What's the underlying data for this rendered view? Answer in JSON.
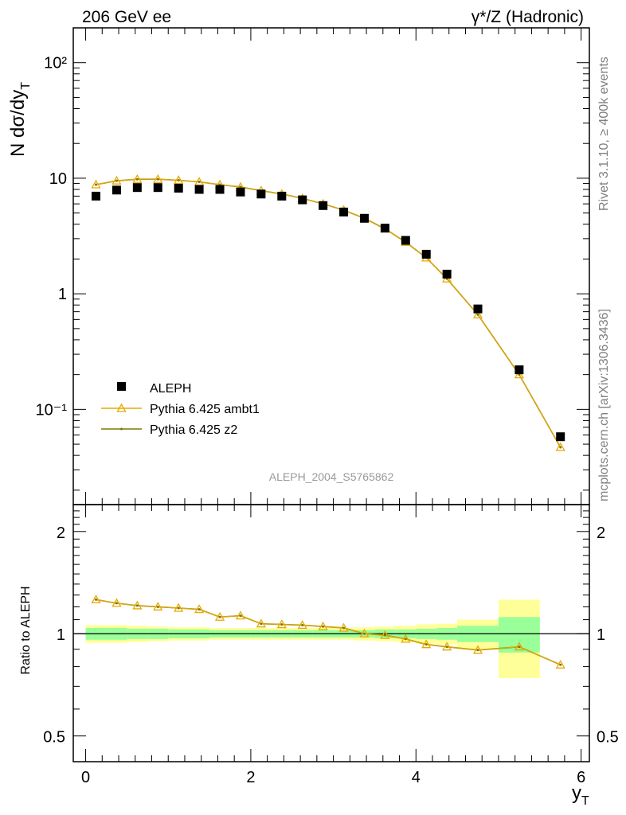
{
  "header": {
    "left_title": "206 GeV ee",
    "right_title": "γ*/Z (Hadronic)"
  },
  "side_text": {
    "rivet": "Rivet 3.1.10, ≥ 400k events",
    "mcplots": "mcplots.cern.ch [arXiv:1306.3436]"
  },
  "analysis_tag": "ALEPH_2004_S5765862",
  "colors": {
    "data": "#000000",
    "ambt1": "#e8a800",
    "z2": "#7a7a00",
    "band_inner": "#99ff99",
    "band_outer": "#ffff99"
  },
  "chart_data": [
    {
      "type": "scatter",
      "ylabel": "N dσ/dy_T",
      "yscale": "log",
      "ylim": [
        0.015,
        200
      ],
      "xlim": [
        -0.15,
        6.1
      ],
      "yticks": [
        {
          "value": 0.1,
          "label": "10⁻¹"
        },
        {
          "value": 1,
          "label": "1"
        },
        {
          "value": 10,
          "label": "10"
        },
        {
          "value": 100,
          "label": "10²"
        }
      ],
      "legend_position": "bottom-left",
      "series": [
        {
          "name": "ALEPH",
          "marker": "filled-square",
          "x": [
            0.125,
            0.375,
            0.625,
            0.875,
            1.125,
            1.375,
            1.625,
            1.875,
            2.125,
            2.375,
            2.625,
            2.875,
            3.125,
            3.375,
            3.625,
            3.875,
            4.125,
            4.375,
            4.75,
            5.25,
            5.75
          ],
          "values": [
            7.0,
            7.9,
            8.3,
            8.3,
            8.2,
            8.0,
            8.0,
            7.6,
            7.3,
            7.0,
            6.5,
            5.8,
            5.1,
            4.5,
            3.7,
            2.9,
            2.2,
            1.48,
            0.74,
            0.22,
            0.058
          ]
        },
        {
          "name": "Pythia 6.425 ambt1",
          "marker": "open-triangle",
          "x": [
            0.125,
            0.375,
            0.625,
            0.875,
            1.125,
            1.375,
            1.625,
            1.875,
            2.125,
            2.375,
            2.625,
            2.875,
            3.125,
            3.375,
            3.625,
            3.875,
            4.125,
            4.375,
            4.75,
            5.25,
            5.75
          ],
          "values": [
            8.8,
            9.5,
            9.8,
            9.8,
            9.6,
            9.3,
            8.8,
            8.4,
            7.8,
            7.3,
            6.7,
            6.0,
            5.3,
            4.5,
            3.65,
            2.8,
            2.05,
            1.35,
            0.66,
            0.2,
            0.047
          ]
        },
        {
          "name": "Pythia 6.425 z2",
          "marker": "small-dot",
          "x": [
            0.125,
            0.375,
            0.625,
            0.875,
            1.125,
            1.375,
            1.625,
            1.875,
            2.125,
            2.375,
            2.625,
            2.875,
            3.125,
            3.375,
            3.625,
            3.875,
            4.125,
            4.375,
            4.75,
            5.25,
            5.75
          ],
          "values": [
            8.8,
            9.5,
            9.8,
            9.8,
            9.6,
            9.3,
            8.8,
            8.4,
            7.8,
            7.3,
            6.7,
            6.0,
            5.3,
            4.5,
            3.65,
            2.8,
            2.05,
            1.35,
            0.66,
            0.2,
            0.047
          ]
        }
      ]
    },
    {
      "type": "line",
      "ylabel": "Ratio to ALEPH",
      "xlabel": "y_T",
      "yscale": "log",
      "ylim": [
        0.42,
        2.4
      ],
      "xlim": [
        -0.15,
        6.1
      ],
      "xticks": [
        0,
        2,
        4,
        6
      ],
      "yticks": [
        {
          "value": 0.5,
          "label": "0.5"
        },
        {
          "value": 1,
          "label": "1"
        },
        {
          "value": 2,
          "label": "2"
        }
      ],
      "bands": {
        "x_edges": [
          0,
          0.25,
          0.5,
          0.75,
          1.0,
          1.25,
          1.5,
          1.75,
          2.0,
          2.25,
          2.5,
          2.75,
          3.0,
          3.25,
          3.5,
          3.75,
          4.0,
          4.25,
          4.5,
          5.0,
          5.5,
          6.0
        ],
        "inner_half_width": [
          0.04,
          0.04,
          0.035,
          0.035,
          0.03,
          0.03,
          0.025,
          0.025,
          0.025,
          0.025,
          0.025,
          0.025,
          0.025,
          0.025,
          0.03,
          0.03,
          0.035,
          0.04,
          0.055,
          0.12
        ],
        "outer_half_width": [
          0.06,
          0.06,
          0.055,
          0.05,
          0.045,
          0.045,
          0.04,
          0.04,
          0.04,
          0.04,
          0.04,
          0.04,
          0.04,
          0.045,
          0.05,
          0.055,
          0.065,
          0.07,
          0.1,
          0.26
        ]
      },
      "series": [
        {
          "name": "Pythia 6.425 ambt1",
          "x": [
            0.125,
            0.375,
            0.625,
            0.875,
            1.125,
            1.375,
            1.625,
            1.875,
            2.125,
            2.375,
            2.625,
            2.875,
            3.125,
            3.375,
            3.625,
            3.875,
            4.125,
            4.375,
            4.75,
            5.25,
            5.75
          ],
          "values": [
            1.26,
            1.23,
            1.21,
            1.2,
            1.19,
            1.18,
            1.12,
            1.13,
            1.07,
            1.065,
            1.06,
            1.05,
            1.04,
            1.0,
            0.99,
            0.965,
            0.93,
            0.915,
            0.895,
            0.915,
            0.81
          ]
        },
        {
          "name": "Pythia 6.425 z2",
          "x": [
            0.125,
            0.375,
            0.625,
            0.875,
            1.125,
            1.375,
            1.625,
            1.875,
            2.125,
            2.375,
            2.625,
            2.875,
            3.125,
            3.375,
            3.625,
            3.875,
            4.125,
            4.375,
            4.75,
            5.25,
            5.75
          ],
          "values": [
            1.26,
            1.23,
            1.21,
            1.2,
            1.19,
            1.18,
            1.12,
            1.13,
            1.07,
            1.065,
            1.06,
            1.05,
            1.04,
            1.0,
            0.99,
            0.965,
            0.93,
            0.915,
            0.895,
            0.915,
            0.81
          ]
        }
      ]
    }
  ]
}
